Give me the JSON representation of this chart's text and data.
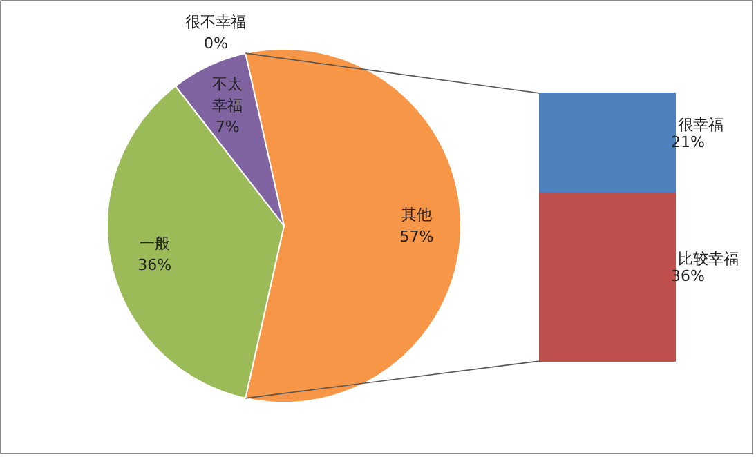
{
  "chart_data": [
    {
      "type": "pie",
      "categories": [
        "其他",
        "一般",
        "不太幸福",
        "很不幸福"
      ],
      "values": [
        57,
        36,
        7,
        0
      ],
      "colors": [
        "#f79646",
        "#9bbb59",
        "#8064a2",
        "#4f81bd"
      ],
      "value_labels": [
        "57%",
        "36%",
        "7%",
        "0%"
      ]
    },
    {
      "type": "bar",
      "stacked": true,
      "categories": [
        null
      ],
      "series": [
        {
          "name": "比较幸福",
          "color": "#c0504d",
          "values": [
            36
          ],
          "value_labels": [
            "36%"
          ]
        },
        {
          "name": "很幸福",
          "color": "#4f81bd",
          "values": [
            21
          ],
          "value_labels": [
            "21%"
          ]
        }
      ]
    }
  ]
}
